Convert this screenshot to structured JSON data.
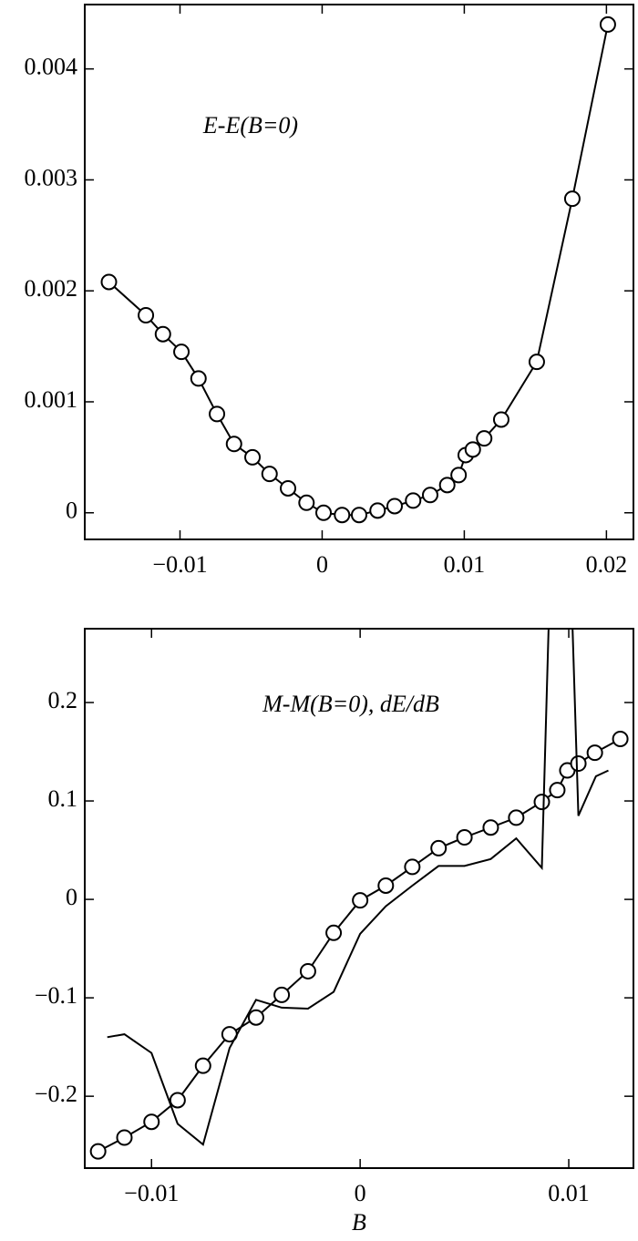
{
  "chart_data": [
    {
      "type": "line",
      "annotation": "E-E(B=0)",
      "xlim": [
        -0.0167,
        0.0219
      ],
      "ylim": [
        -0.00024,
        0.00458
      ],
      "xticks": [
        {
          "value": -0.01,
          "label": "−0.01"
        },
        0,
        0.01,
        0.02
      ],
      "yticks": [
        0,
        0.001,
        0.002,
        0.003,
        0.004
      ],
      "series": [
        {
          "color": "#000000",
          "marker": "circle",
          "x": [
            -0.015,
            -0.0124,
            -0.0112,
            -0.0099,
            -0.0087,
            -0.0074,
            -0.0062,
            -0.0049,
            -0.0037,
            -0.0024,
            -0.0011,
            0.0001,
            0.0014,
            0.0026,
            0.0039,
            0.0051,
            0.0064,
            0.0076,
            0.0088,
            0.0096,
            0.0101,
            0.0106,
            0.0114,
            0.0126,
            0.0151,
            0.0176,
            0.0201
          ],
          "values": [
            0.00208,
            0.00178,
            0.00161,
            0.00145,
            0.00121,
            0.00089,
            0.00062,
            0.0005,
            0.00035,
            0.00022,
            9e-05,
            0,
            -2e-05,
            -2e-05,
            2e-05,
            6e-05,
            0.00011,
            0.00016,
            0.00025,
            0.00034,
            0.00052,
            0.00057,
            0.00067,
            0.00084,
            0.00136,
            0.00283,
            0.0044
          ]
        }
      ]
    },
    {
      "type": "line",
      "annotation": "M-M(B=0), dE/dB",
      "xlabel": "B",
      "xlim": [
        -0.0132,
        0.0131
      ],
      "ylim": [
        -0.273,
        0.275
      ],
      "xticks": [
        {
          "value": -0.01,
          "label": "−0.01"
        },
        0,
        0.01
      ],
      "yticks": [
        {
          "value": -0.2,
          "label": "−0.2"
        },
        {
          "value": -0.1,
          "label": "−0.1"
        },
        0,
        0.1,
        0.2
      ],
      "series": [
        {
          "color": "#000000",
          "marker": "circle",
          "x": [
            -0.01256,
            -0.0113,
            -0.01,
            -0.00875,
            -0.00753,
            -0.00626,
            -0.00499,
            -0.00376,
            -0.0025,
            -0.00127,
            0,
            0.00123,
            0.0025,
            0.00376,
            0.005,
            0.00626,
            0.00748,
            0.00871,
            0.00945,
            0.00993,
            0.01046,
            0.01125,
            0.01247
          ],
          "values": [
            -0.256,
            -0.242,
            -0.226,
            -0.204,
            -0.169,
            -0.137,
            -0.12,
            -0.097,
            -0.073,
            -0.034,
            -0.001,
            0.014,
            0.033,
            0.052,
            0.063,
            0.073,
            0.083,
            0.099,
            0.111,
            0.131,
            0.138,
            0.149,
            0.163
          ]
        },
        {
          "color": "#000000",
          "marker": "none",
          "x": [
            -0.01212,
            -0.0113,
            -0.01,
            -0.00875,
            -0.00753,
            -0.00626,
            -0.00499,
            -0.00376,
            -0.0025,
            -0.00127,
            0,
            0.00123,
            0.0025,
            0.00376,
            0.005,
            0.00626,
            0.00748,
            0.00871,
            0.0092,
            0.01,
            0.01046,
            0.0113,
            0.0119
          ],
          "values": [
            -0.14,
            -0.137,
            -0.156,
            -0.228,
            -0.249,
            -0.151,
            -0.102,
            -0.11,
            -0.111,
            -0.094,
            -0.035,
            -0.007,
            0.014,
            0.034,
            0.034,
            0.041,
            0.062,
            0.032,
            0.4,
            0.4,
            0.085,
            0.125,
            0.131
          ]
        }
      ]
    }
  ]
}
